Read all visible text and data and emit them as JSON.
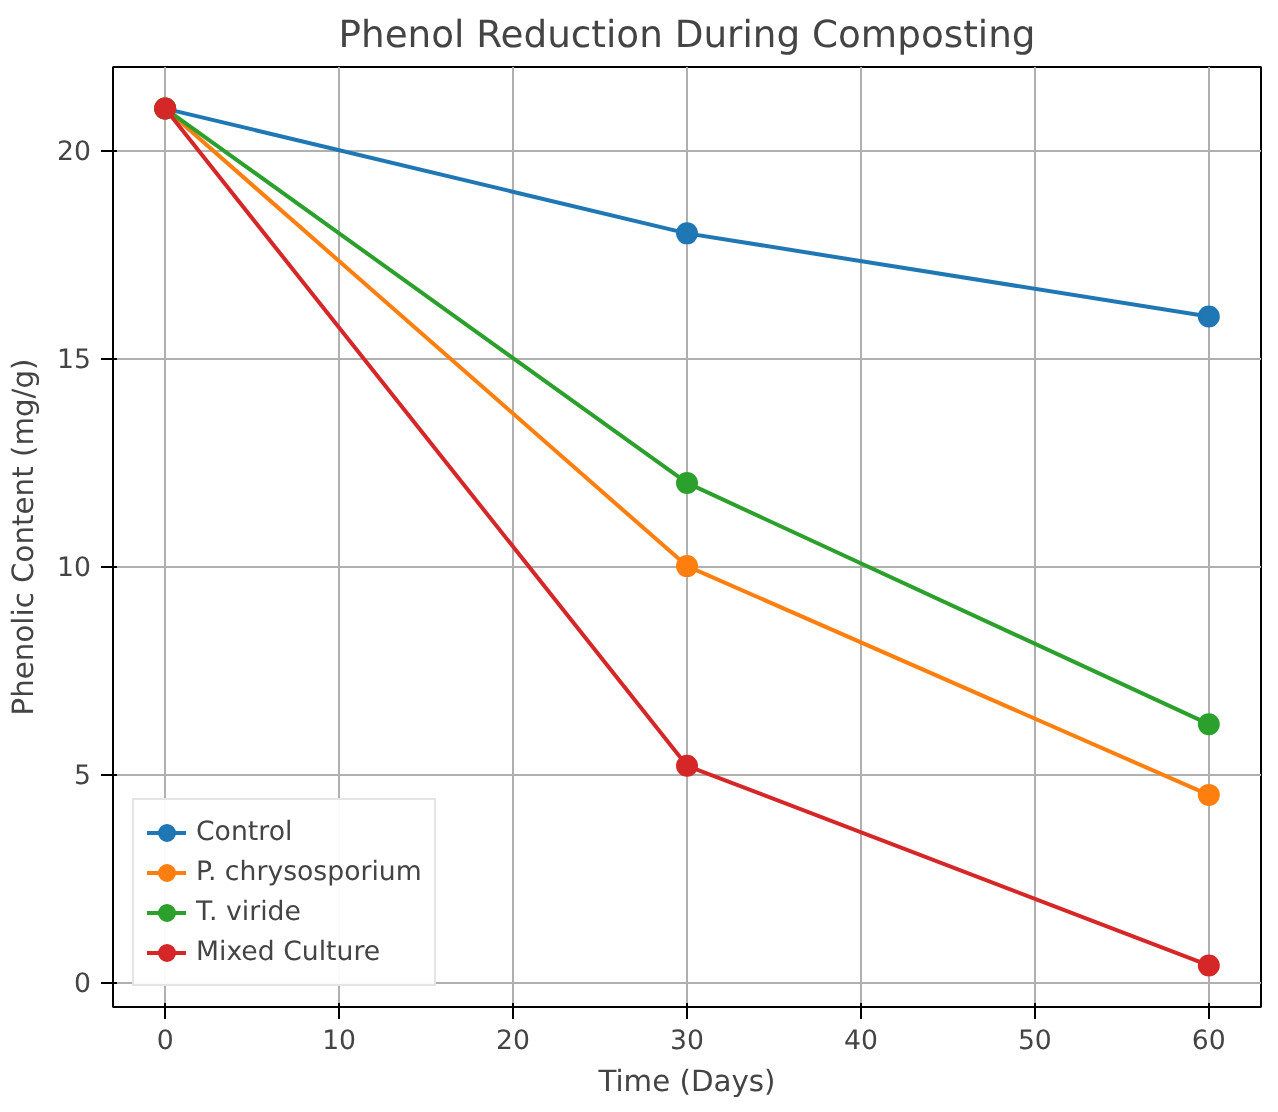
{
  "chart_data": {
    "type": "line",
    "title": "Phenol Reduction During Composting",
    "xlabel": "Time (Days)",
    "ylabel": "Phenolic Content (mg/g)",
    "x": [
      0,
      30,
      60
    ],
    "series": [
      {
        "name": "Control",
        "color": "#1f77b4",
        "values": [
          21,
          18,
          16
        ]
      },
      {
        "name": "P. chrysosporium",
        "color": "#ff7f0e",
        "values": [
          21,
          10,
          4.5
        ]
      },
      {
        "name": "T. viride",
        "color": "#2ca02c",
        "values": [
          21,
          12,
          6.2
        ]
      },
      {
        "name": "Mixed Culture",
        "color": "#d62728",
        "values": [
          21,
          5.2,
          0.4
        ]
      }
    ],
    "xlim": [
      -3,
      63
    ],
    "ylim": [
      -0.6,
      22
    ],
    "xticks": [
      0,
      10,
      20,
      30,
      40,
      50,
      60
    ],
    "yticks": [
      0,
      5,
      10,
      15,
      20
    ],
    "grid": true,
    "legend": "bottom left",
    "marker": "circle",
    "line_style": "solid"
  }
}
